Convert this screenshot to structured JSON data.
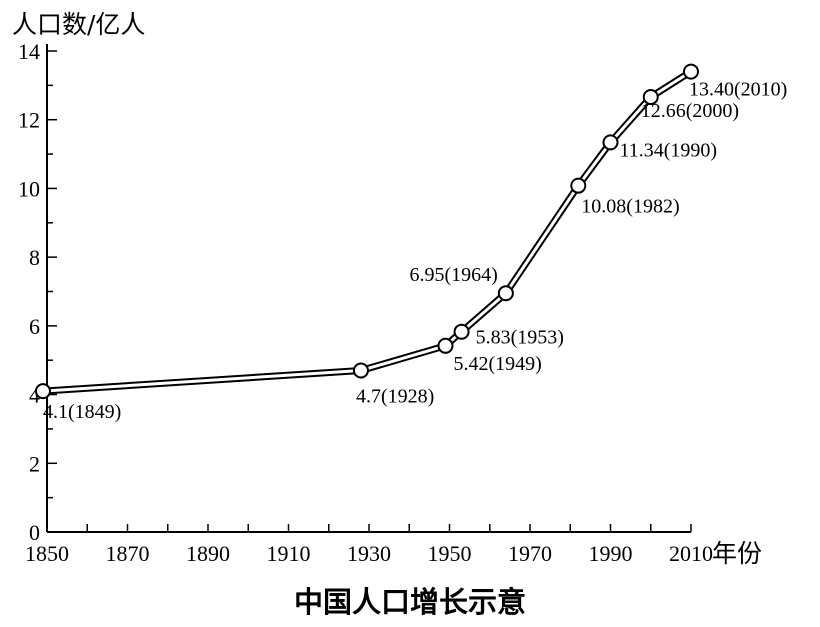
{
  "chart_data": {
    "type": "line",
    "title": "中国人口增长示意",
    "ylabel": "人口数/亿人",
    "xlabel": "年份",
    "xlim": [
      1850,
      2010
    ],
    "ylim": [
      0,
      14
    ],
    "x_ticks": [
      "1850",
      "1870",
      "1890",
      "1910",
      "1930",
      "1950",
      "1970",
      "1990",
      "2010"
    ],
    "y_ticks": [
      "0",
      "2",
      "4",
      "6",
      "8",
      "10",
      "12",
      "14"
    ],
    "grid": false,
    "series": [
      {
        "points": [
          {
            "x": 1849,
            "y": 4.1,
            "label": "4.1(1849)"
          },
          {
            "x": 1928,
            "y": 4.7,
            "label": "4.7(1928)"
          },
          {
            "x": 1949,
            "y": 5.42,
            "label": "5.42(1949)"
          },
          {
            "x": 1953,
            "y": 5.83,
            "label": "5.83(1953)"
          },
          {
            "x": 1964,
            "y": 6.95,
            "label": "6.95(1964)"
          },
          {
            "x": 1982,
            "y": 10.08,
            "label": "10.08(1982)"
          },
          {
            "x": 1990,
            "y": 11.34,
            "label": "11.34(1990)"
          },
          {
            "x": 2000,
            "y": 12.66,
            "label": "12.66(2000)"
          },
          {
            "x": 2010,
            "y": 13.4,
            "label": "13.40(2010)"
          }
        ]
      }
    ]
  }
}
